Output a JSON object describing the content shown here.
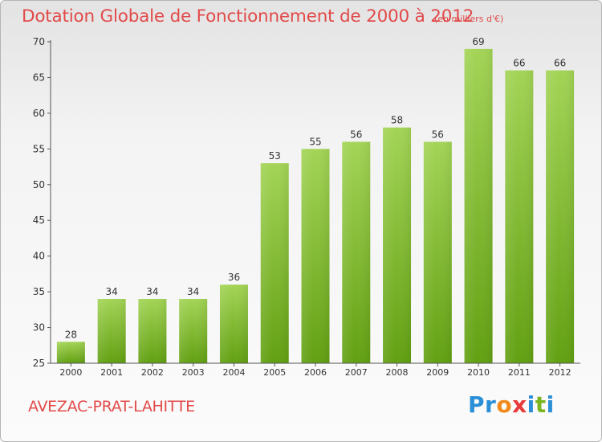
{
  "chart_data": {
    "type": "bar",
    "title": "Dotation Globale de Fonctionnement de 2000 à 2012",
    "unit_note": "(en milliers d'€)",
    "categories": [
      "2000",
      "2001",
      "2002",
      "2003",
      "2004",
      "2005",
      "2006",
      "2007",
      "2008",
      "2009",
      "2010",
      "2011",
      "2012"
    ],
    "values": [
      28,
      34,
      34,
      34,
      36,
      53,
      55,
      56,
      58,
      56,
      69,
      66,
      66
    ],
    "ylim": [
      25,
      70
    ],
    "yticks": [
      25,
      30,
      35,
      40,
      45,
      50,
      55,
      60,
      65,
      70
    ],
    "xlabel": "",
    "ylabel": "",
    "grid": false
  },
  "footer": {
    "commune": "AVEZAC-PRAT-LAHITTE",
    "brand_letters": [
      "P",
      "r",
      "o",
      "x",
      "i",
      "t",
      "i"
    ],
    "brand_colors": [
      "#2a8fd6",
      "#2a8fd6",
      "#f08a1c",
      "#e83a3a",
      "#2a8fd6",
      "#7ab51d",
      "#2a8fd6"
    ]
  },
  "colors": {
    "title": "#e24a4a",
    "bar_light": "#9fd152",
    "bar_dark": "#64a014",
    "axis": "#555555",
    "label": "#333333"
  }
}
